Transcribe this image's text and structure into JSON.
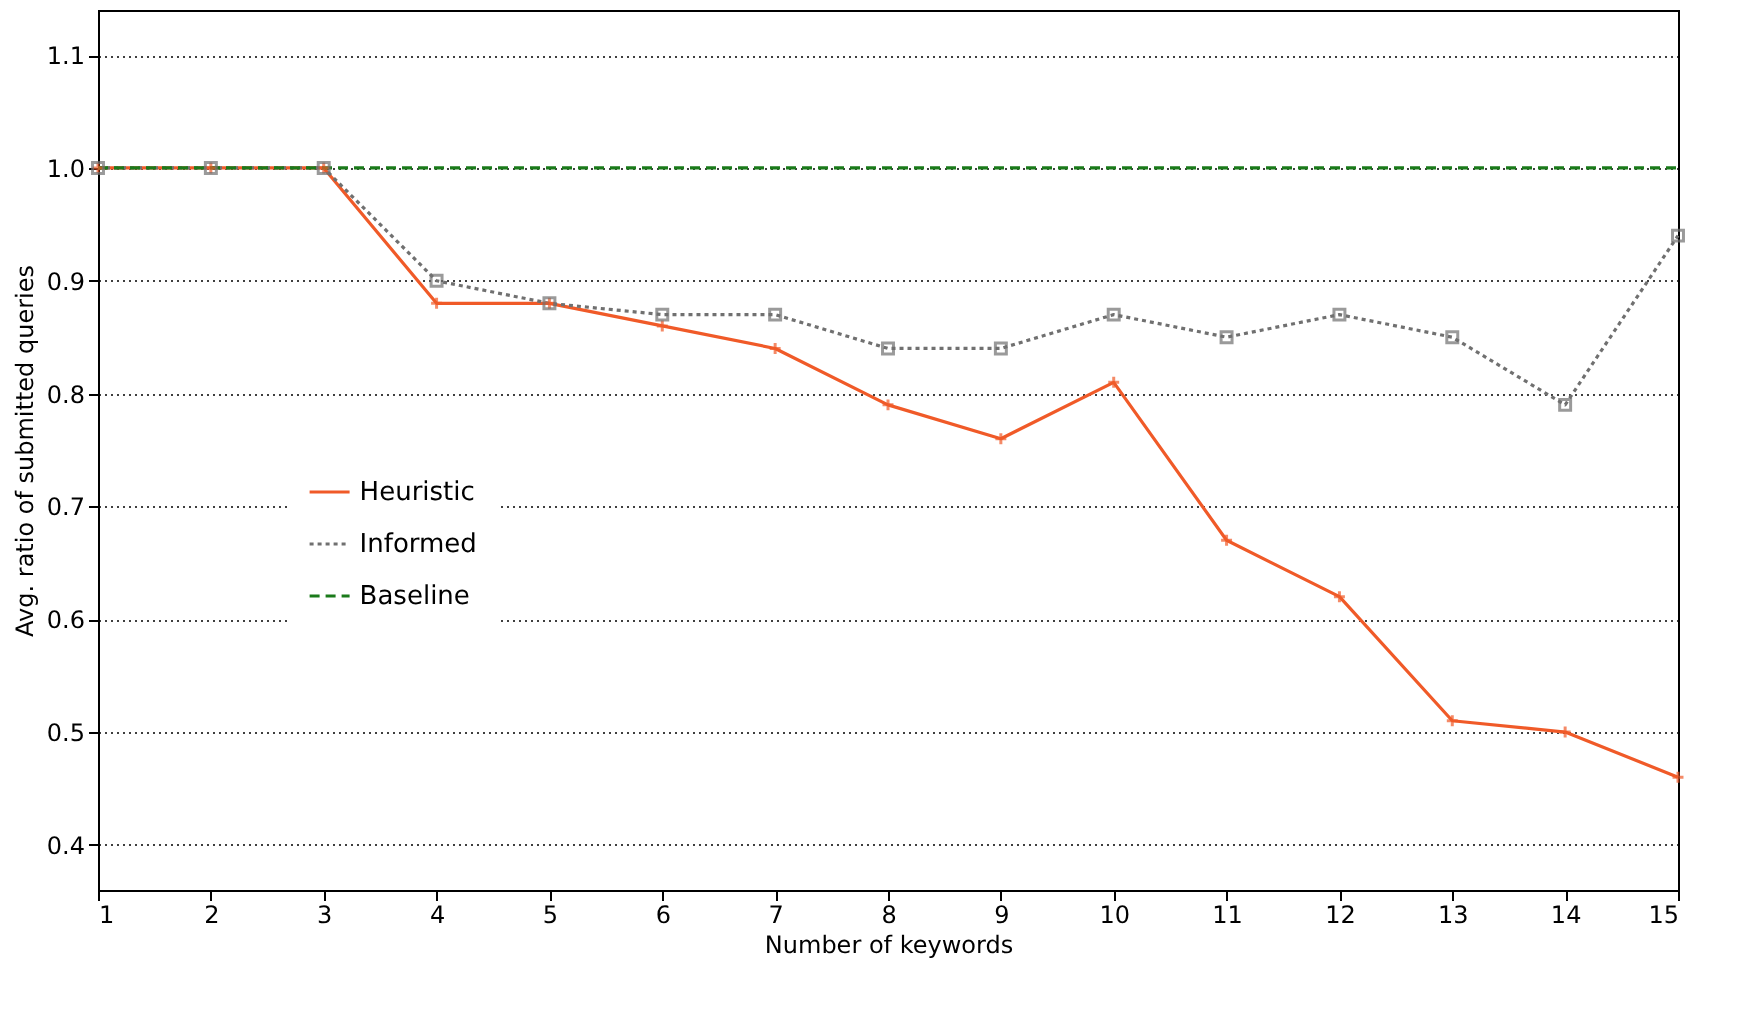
{
  "chart_data": {
    "type": "line",
    "xlabel": "Number of keywords",
    "ylabel": "Avg. ratio of submitted queries",
    "x": [
      1,
      2,
      3,
      4,
      5,
      6,
      7,
      8,
      9,
      10,
      11,
      12,
      13,
      14,
      15
    ],
    "xlim": [
      1,
      15
    ],
    "xticks": [
      1,
      2,
      3,
      4,
      5,
      6,
      7,
      8,
      9,
      10,
      11,
      12,
      13,
      14,
      15
    ],
    "ylim": [
      0.36,
      1.14
    ],
    "yticks": [
      0.4,
      0.5,
      0.6,
      0.7,
      0.8,
      0.9,
      {
        "value": 1.0,
        "label": "1.0"
      },
      1.1
    ],
    "grid": "y",
    "legend": "left",
    "series": [
      {
        "name": "Heuristic",
        "color": "#f05a28",
        "marker": "cross",
        "line_style": "solid",
        "values": [
          1.0,
          1.0,
          1.0,
          0.88,
          0.88,
          0.86,
          0.84,
          0.79,
          0.76,
          0.81,
          0.67,
          0.62,
          0.51,
          0.5,
          0.46
        ]
      },
      {
        "name": "Informed",
        "color": "#707070",
        "marker": "square",
        "line_style": "dotted",
        "values": [
          1.0,
          1.0,
          1.0,
          0.9,
          0.88,
          0.87,
          0.87,
          0.84,
          0.84,
          0.87,
          0.85,
          0.87,
          0.85,
          0.79,
          0.94
        ]
      },
      {
        "name": "Baseline",
        "color": "#1a7a1a",
        "marker": "none",
        "line_style": "dashed",
        "values": [
          1.0,
          1.0,
          1.0,
          1.0,
          1.0,
          1.0,
          1.0,
          1.0,
          1.0,
          1.0,
          1.0,
          1.0,
          1.0,
          1.0,
          1.0
        ]
      }
    ]
  }
}
